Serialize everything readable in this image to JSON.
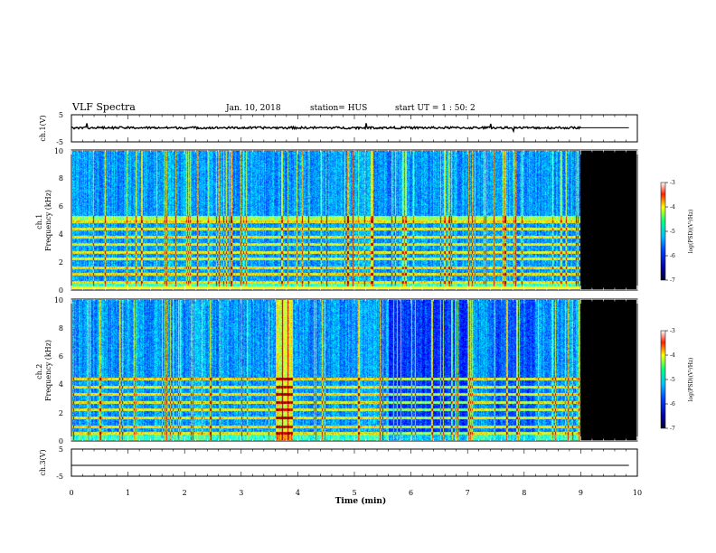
{
  "header": {
    "title": "VLF Spectra",
    "date": "Jan. 10, 2018",
    "station": "station= HUS",
    "start": "start UT =  1 : 50: 2"
  },
  "chart_data": [
    {
      "type": "line",
      "panel": "ch1-waveform",
      "ylabel": "ch.1(V)",
      "yticks": [
        "5",
        "-5"
      ],
      "ylim": [
        -5,
        5
      ],
      "xlim": [
        0,
        10
      ],
      "baseline": 0.2,
      "data_end_min": 9.0
    },
    {
      "type": "heatmap",
      "panel": "ch1-spectrogram",
      "ylabel": "ch.1\nFrequency (kHz)",
      "yticks": [
        "0",
        "2",
        "4",
        "6",
        "8",
        "10"
      ],
      "ylim": [
        0,
        10
      ],
      "xlim": [
        0,
        10
      ],
      "data_end_min": 9.0,
      "strong_bands_khz": [
        0.5,
        1.1,
        1.6,
        2.2,
        2.7,
        3.3,
        3.8,
        4.4,
        4.9
      ],
      "colorbar": {
        "label": "log(PSD)(V²/Hz)",
        "ticks": [
          "-3",
          "-4",
          "-5",
          "-6",
          "-7"
        ],
        "range": [
          -7,
          -3
        ]
      }
    },
    {
      "type": "heatmap",
      "panel": "ch2-spectrogram",
      "ylabel": "ch.2\nFrequency (kHz)",
      "yticks": [
        "0",
        "2",
        "4",
        "6",
        "8",
        "10"
      ],
      "ylim": [
        0,
        10
      ],
      "xlim": [
        0,
        10
      ],
      "data_end_min": 9.0,
      "strong_bands_khz": [
        0.5,
        1.0,
        1.6,
        2.2,
        2.7,
        3.3,
        3.8,
        4.4
      ],
      "colorbar": {
        "label": "log(PSD)(V²/Hz)",
        "ticks": [
          "-3",
          "-4",
          "-5",
          "-6",
          "-7"
        ],
        "range": [
          -7,
          -3
        ]
      }
    },
    {
      "type": "line",
      "panel": "ch3-waveform",
      "ylabel": "ch.3(V)",
      "yticks": [
        "5",
        "-5"
      ],
      "ylim": [
        -5,
        5
      ],
      "xlim": [
        0,
        10
      ],
      "baseline": -1.0,
      "data_end_min": 10.0
    }
  ],
  "xaxis": {
    "label": "Time (min)",
    "ticks": [
      "0",
      "1",
      "2",
      "3",
      "4",
      "5",
      "6",
      "7",
      "8",
      "9",
      "10"
    ]
  },
  "colors": {
    "background": "#ffffff",
    "fill_after_end": "#000000"
  }
}
